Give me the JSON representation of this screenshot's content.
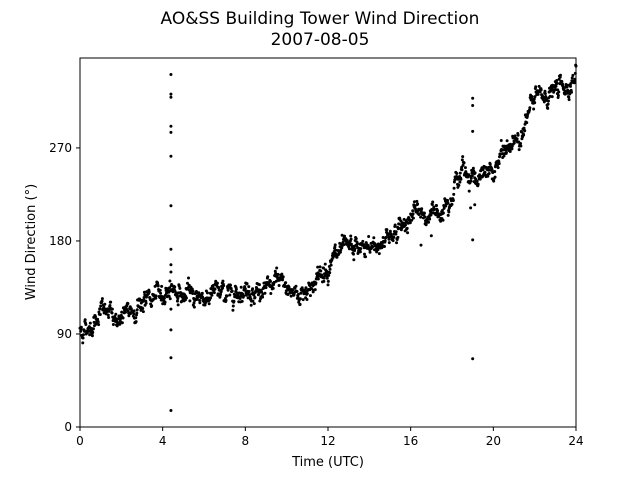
{
  "chart_data": {
    "type": "scatter",
    "title": "AO&SS Building Tower Wind Direction",
    "subtitle": "2007-08-05",
    "xlabel": "Time (UTC)",
    "ylabel": "Wind Direction (°)",
    "xlim": [
      0,
      24
    ],
    "ylim": [
      0,
      357
    ],
    "xticks": [
      0,
      4,
      8,
      12,
      16,
      20,
      24
    ],
    "yticks": [
      0,
      90,
      180,
      270
    ],
    "grid": false,
    "legend": "none",
    "marker_color": "#000000",
    "trend_knots": [
      [
        0.0,
        94
      ],
      [
        0.5,
        97
      ],
      [
        1.0,
        114
      ],
      [
        1.5,
        108
      ],
      [
        2.0,
        104
      ],
      [
        2.5,
        112
      ],
      [
        3.0,
        122
      ],
      [
        3.5,
        124
      ],
      [
        4.0,
        127
      ],
      [
        4.3,
        136
      ],
      [
        4.5,
        135
      ],
      [
        5.0,
        126
      ],
      [
        5.5,
        128
      ],
      [
        6.0,
        126
      ],
      [
        6.5,
        130
      ],
      [
        7.0,
        129
      ],
      [
        7.5,
        133
      ],
      [
        8.0,
        134
      ],
      [
        8.5,
        132
      ],
      [
        9.0,
        130
      ],
      [
        9.5,
        140
      ],
      [
        10.0,
        135
      ],
      [
        10.5,
        128
      ],
      [
        11.0,
        134
      ],
      [
        11.5,
        143
      ],
      [
        12.0,
        157
      ],
      [
        12.5,
        166
      ],
      [
        13.0,
        170
      ],
      [
        13.5,
        172
      ],
      [
        14.0,
        171
      ],
      [
        14.5,
        177
      ],
      [
        15.0,
        187
      ],
      [
        15.5,
        192
      ],
      [
        16.0,
        205
      ],
      [
        16.5,
        206
      ],
      [
        17.0,
        204
      ],
      [
        17.5,
        213
      ],
      [
        18.0,
        230
      ],
      [
        18.5,
        248
      ],
      [
        19.0,
        244
      ],
      [
        19.5,
        240
      ],
      [
        20.0,
        247
      ],
      [
        20.5,
        265
      ],
      [
        21.0,
        275
      ],
      [
        21.5,
        292
      ],
      [
        22.0,
        318
      ],
      [
        22.5,
        320
      ],
      [
        23.0,
        326
      ],
      [
        23.5,
        330
      ],
      [
        24.0,
        338
      ]
    ],
    "trend_noise": 5,
    "sample_interval_minutes": 1,
    "outliers": [
      [
        4.4,
        341
      ],
      [
        4.4,
        322
      ],
      [
        4.4,
        319
      ],
      [
        4.4,
        291
      ],
      [
        4.4,
        285
      ],
      [
        4.4,
        262
      ],
      [
        4.4,
        214
      ],
      [
        4.4,
        172
      ],
      [
        4.4,
        157
      ],
      [
        4.4,
        150
      ],
      [
        4.4,
        114
      ],
      [
        4.4,
        94
      ],
      [
        4.4,
        67
      ],
      [
        4.4,
        16
      ],
      [
        19.0,
        318
      ],
      [
        19.0,
        311
      ],
      [
        19.0,
        286
      ],
      [
        19.0,
        181
      ],
      [
        19.0,
        66
      ],
      [
        18.9,
        212
      ],
      [
        19.1,
        215
      ],
      [
        16.5,
        176
      ],
      [
        17.0,
        185
      ]
    ]
  }
}
